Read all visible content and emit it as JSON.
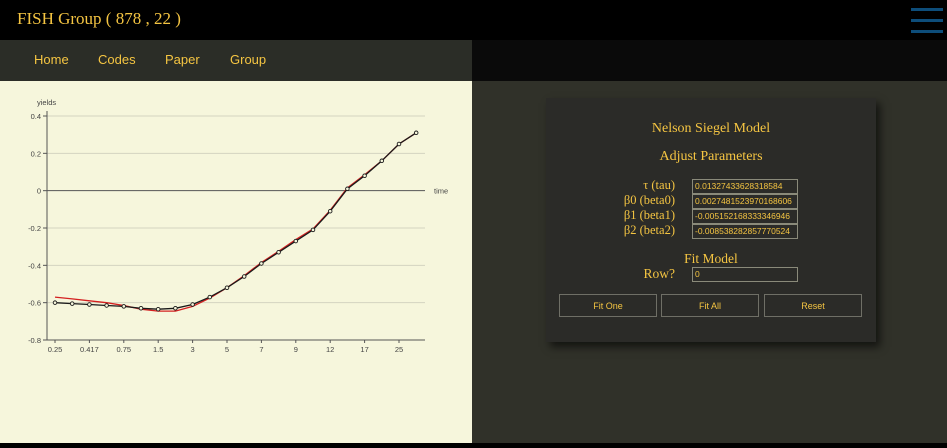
{
  "header": {
    "title": "FISH Group ( 878 , 22 )",
    "menu_icon": "hamburger-icon",
    "accent_color": "#f5c542"
  },
  "nav": {
    "items": [
      {
        "label": "Home"
      },
      {
        "label": "Codes"
      },
      {
        "label": "Paper"
      },
      {
        "label": "Group"
      }
    ]
  },
  "chart_data": {
    "type": "line",
    "ylabel": "yields",
    "xlabel": "time",
    "categories": [
      "0.25",
      "0.417",
      "0.75",
      "1.5",
      "3",
      "5",
      "7",
      "9",
      "12",
      "17",
      "25"
    ],
    "yticks": [
      "0.4",
      "0.2",
      "0",
      "-0.2",
      "-0.4",
      "-0.6",
      "-0.8"
    ],
    "ylim": [
      -0.8,
      0.4
    ],
    "grid": true,
    "series": [
      {
        "color": "#1a1a1a",
        "markers": true,
        "x": [
          0,
          0.5,
          1,
          1.5,
          2,
          2.5,
          3,
          3.5,
          4,
          4.5,
          5,
          5.5,
          6,
          6.5,
          7,
          7.5,
          8,
          8.5,
          9,
          9.5,
          10,
          10.5
        ],
        "values": [
          -0.6,
          -0.605,
          -0.61,
          -0.615,
          -0.62,
          -0.63,
          -0.635,
          -0.63,
          -0.61,
          -0.57,
          -0.52,
          -0.46,
          -0.39,
          -0.33,
          -0.27,
          -0.21,
          -0.11,
          0.01,
          0.08,
          0.16,
          0.25,
          0.31
        ]
      },
      {
        "color": "#d42020",
        "markers": false,
        "x": [
          0,
          0.5,
          1,
          1.5,
          2,
          2.5,
          3,
          3.5,
          4,
          4.5,
          5,
          5.5,
          6,
          6.5,
          7,
          7.5,
          8,
          8.5,
          9,
          9.5,
          10,
          10.5
        ],
        "values": [
          -0.57,
          -0.58,
          -0.59,
          -0.6,
          -0.615,
          -0.635,
          -0.645,
          -0.645,
          -0.62,
          -0.575,
          -0.52,
          -0.455,
          -0.385,
          -0.325,
          -0.262,
          -0.205,
          -0.105,
          0.015,
          0.085,
          0.16,
          0.25,
          0.31
        ]
      }
    ]
  },
  "model": {
    "title": "Nelson Siegel Model",
    "subtitle": "Adjust Parameters",
    "params": [
      {
        "label": "τ (tau)",
        "value": "0.01327433628318584"
      },
      {
        "label": "β0 (beta0)",
        "value": "0.0027481523970168606"
      },
      {
        "label": "β1 (beta1)",
        "value": "-0.005152168333346946"
      },
      {
        "label": "β2 (beta2)",
        "value": "-0.008538282857770524"
      }
    ],
    "fit_title": "Fit Model",
    "row_label": "Row?",
    "row_value": "0",
    "buttons": {
      "fit_one": "Fit One",
      "fit_all": "Fit All",
      "reset": "Reset"
    }
  },
  "colors": {
    "header_bg": "#000000",
    "nav_bg": "#2b2d27",
    "chart_bg": "#f6f6dc",
    "panel_bg": "#303129",
    "card_bg": "#2b2b28",
    "menu_icon": "#0d4d7a"
  }
}
